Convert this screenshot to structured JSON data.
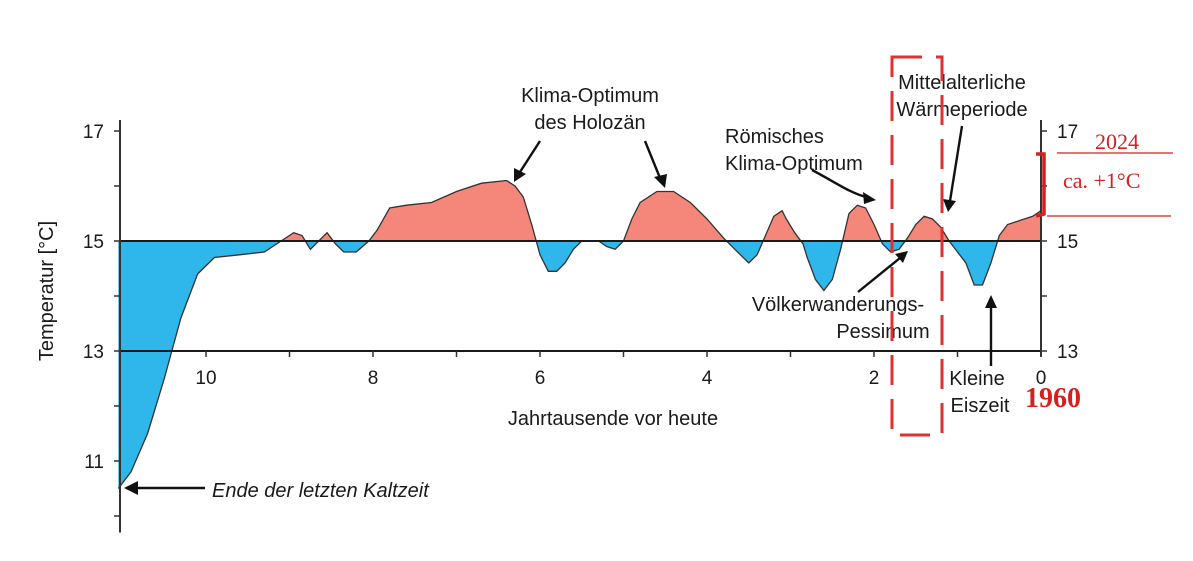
{
  "chart_data": {
    "type": "area",
    "baseline": 15,
    "ylabel": "Temperatur [°C]",
    "xlabel": "Jahrtausende vor heute",
    "x_ticks": [
      10,
      8,
      6,
      4,
      2,
      0
    ],
    "y_ticks_left": [
      17,
      15,
      13,
      11
    ],
    "y_ticks_right": [
      17,
      15,
      13
    ],
    "xlim": [
      11.1,
      0
    ],
    "ylim": [
      10.0,
      17.2
    ],
    "grid_lines_y": [
      15,
      13
    ],
    "colors": {
      "above": "#f4877a",
      "below": "#2fb6ea",
      "line": "#333333",
      "red": "#d42020"
    },
    "series": [
      {
        "x": [
          11.05,
          10.9,
          10.7,
          10.5,
          10.3,
          10.1,
          9.9,
          9.6,
          9.3,
          9.1,
          8.95,
          8.85,
          8.75,
          8.65,
          8.55,
          8.45,
          8.35,
          8.2,
          8.05,
          7.95,
          7.8,
          7.6,
          7.3,
          7.0,
          6.7,
          6.4,
          6.3,
          6.2,
          6.1,
          6.0,
          5.9,
          5.8,
          5.7,
          5.6,
          5.5,
          5.4,
          5.3,
          5.2,
          5.1,
          5.0,
          4.9,
          4.8,
          4.6,
          4.4,
          4.2,
          4.0,
          3.8,
          3.6,
          3.5,
          3.4,
          3.3,
          3.2,
          3.1,
          3.05,
          2.95,
          2.85,
          2.8,
          2.7,
          2.6,
          2.5,
          2.4,
          2.3,
          2.2,
          2.1,
          2.0,
          1.9,
          1.8,
          1.7,
          1.6,
          1.5,
          1.4,
          1.3,
          1.2,
          1.1,
          1.0,
          0.9,
          0.8,
          0.7,
          0.6,
          0.5,
          0.4,
          0.3,
          0.2,
          0.1,
          0.0
        ],
        "y": [
          10.5,
          10.8,
          11.5,
          12.5,
          13.6,
          14.4,
          14.7,
          14.75,
          14.8,
          15.0,
          15.15,
          15.1,
          14.85,
          15.0,
          15.15,
          14.95,
          14.8,
          14.8,
          15.0,
          15.2,
          15.6,
          15.65,
          15.7,
          15.9,
          16.05,
          16.1,
          16.0,
          15.8,
          15.3,
          14.75,
          14.45,
          14.45,
          14.6,
          14.85,
          15.0,
          15.0,
          15.0,
          14.9,
          14.85,
          15.0,
          15.4,
          15.7,
          15.9,
          15.9,
          15.7,
          15.4,
          15.05,
          14.75,
          14.6,
          14.75,
          15.1,
          15.45,
          15.55,
          15.4,
          15.15,
          14.95,
          14.7,
          14.3,
          14.1,
          14.3,
          14.85,
          15.5,
          15.65,
          15.6,
          15.3,
          14.95,
          14.8,
          14.85,
          15.05,
          15.3,
          15.45,
          15.4,
          15.25,
          15.0,
          14.8,
          14.6,
          14.2,
          14.2,
          14.6,
          15.1,
          15.3,
          15.35,
          15.4,
          15.45,
          15.55
        ]
      }
    ],
    "annotations": {
      "klima_optimum_holozaen": [
        "Klima-Optimum",
        "des Holozän"
      ],
      "roemisches": [
        "Römisches",
        "Klima-Optimum"
      ],
      "mittelalter": [
        "Mittelalterliche",
        "Wärmeperiode"
      ],
      "voelkerwanderung": [
        "Völkerwanderungs-",
        "Pessimum"
      ],
      "kleine_eiszeit": [
        "Kleine",
        "Eiszeit"
      ],
      "ende_kaltzeit": "Ende der letzten Kaltzeit"
    },
    "overlay": {
      "year_2024": "2024",
      "delta": "ca. +1°C",
      "year_1960": "1960"
    }
  }
}
